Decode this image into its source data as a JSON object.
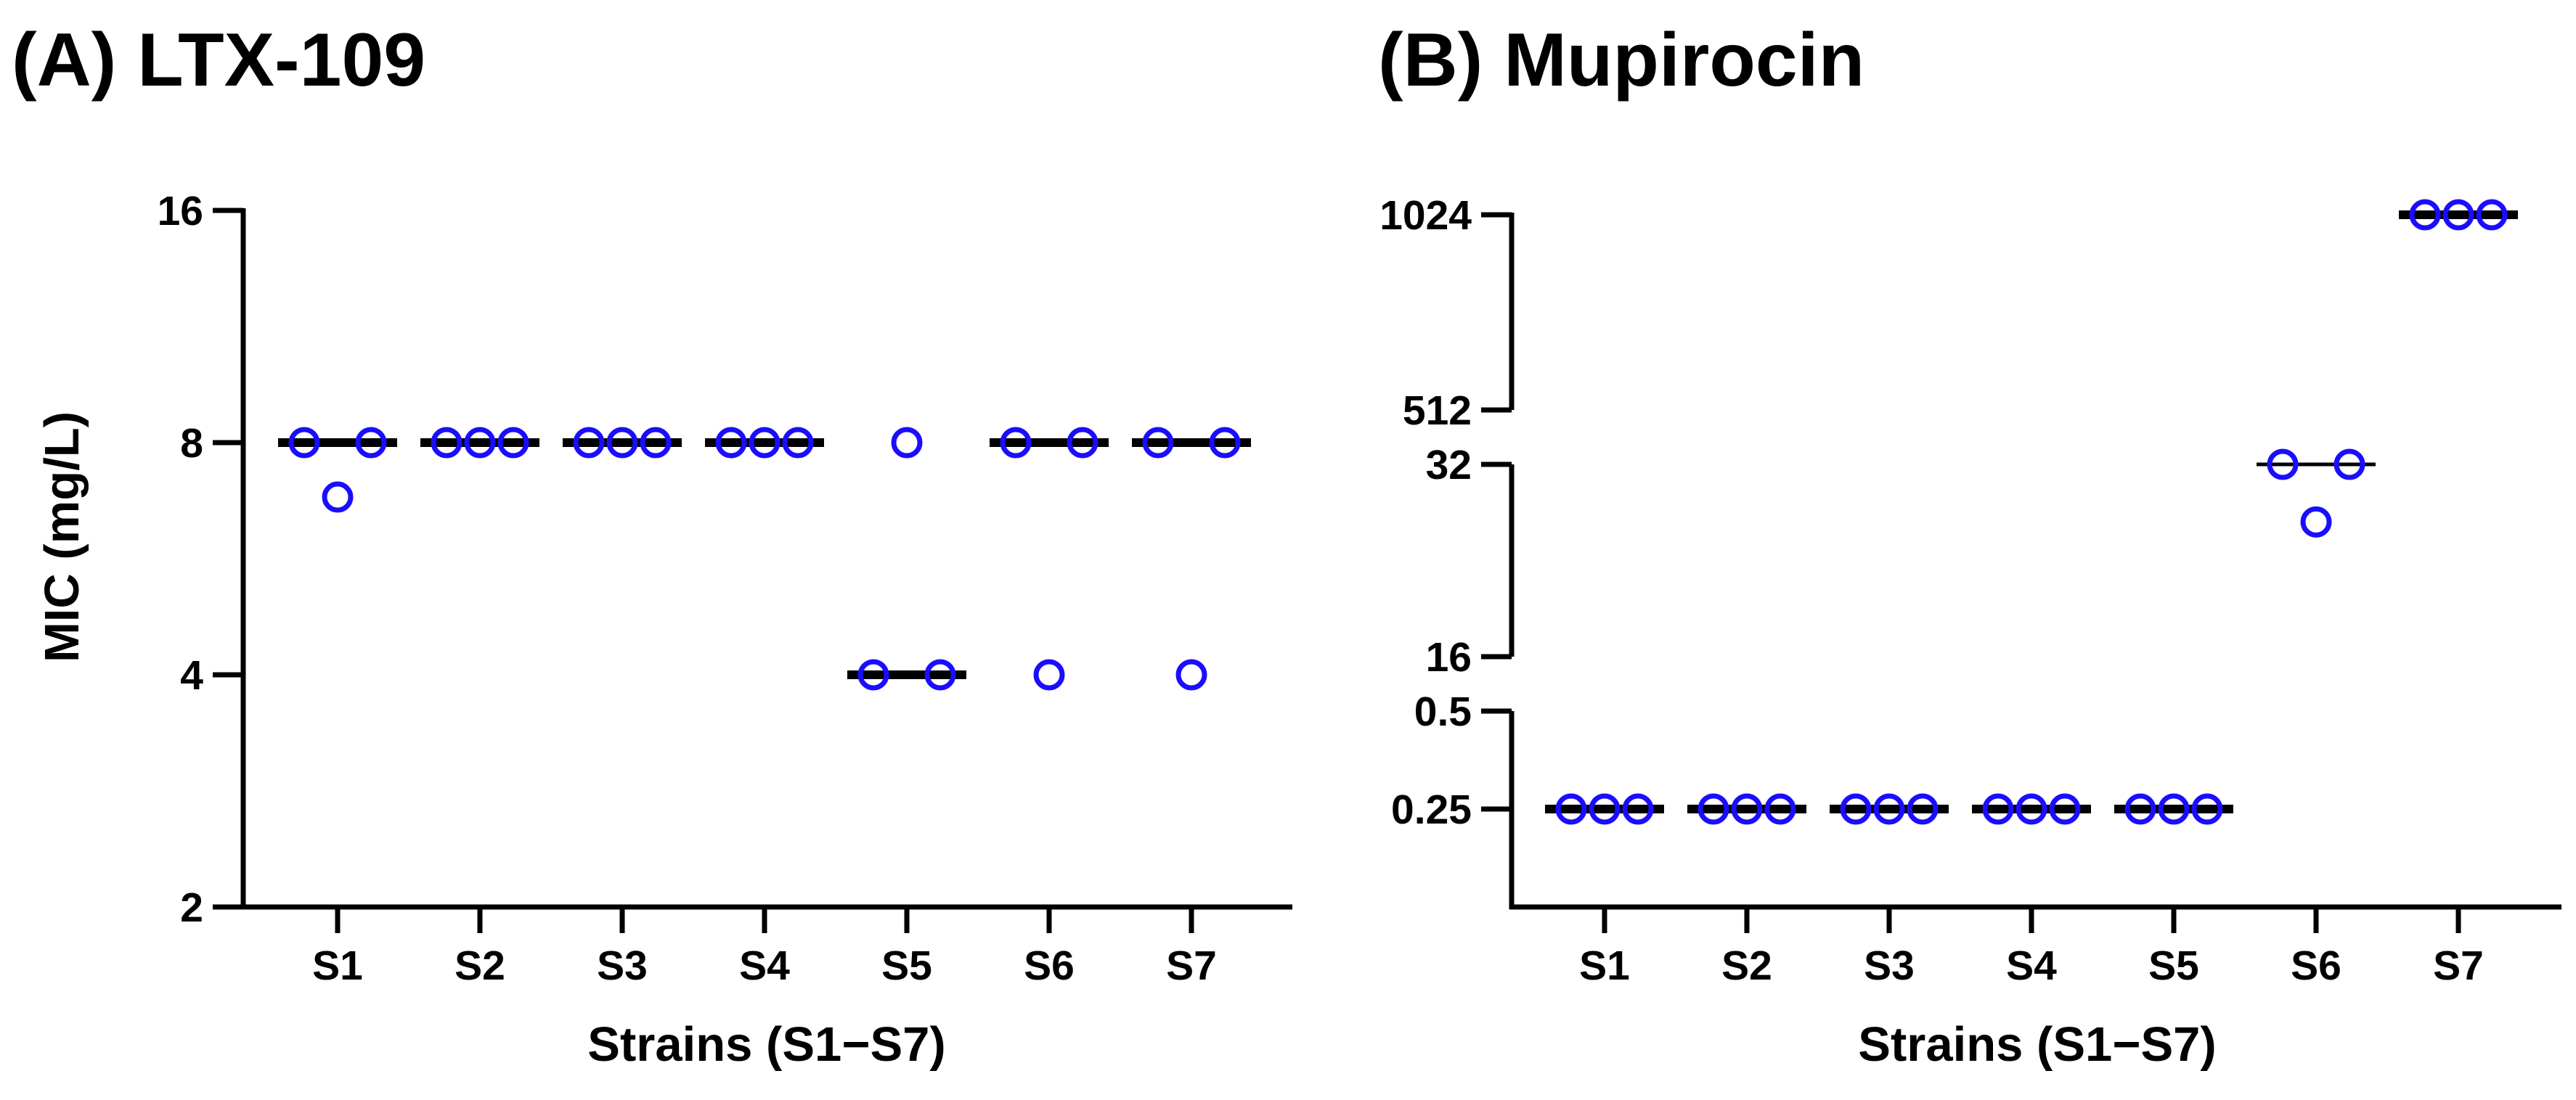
{
  "colors": {
    "points": "#1a0dff",
    "median": "#000000",
    "axes": "#000000"
  },
  "chart_data": [
    {
      "type": "scatter",
      "title": "(A) LTX-109",
      "xlabel": "Strains (S1−S7)",
      "ylabel": "MIC (mg/L)",
      "yscale": "log2",
      "ylim": [
        2,
        16
      ],
      "yticks": [
        "2",
        "4",
        "8",
        "16"
      ],
      "categories": [
        "S1",
        "S2",
        "S3",
        "S4",
        "S5",
        "S6",
        "S7"
      ],
      "replicates": [
        [
          8,
          8,
          6.8
        ],
        [
          8,
          8,
          8
        ],
        [
          8,
          8,
          8
        ],
        [
          8,
          8,
          8
        ],
        [
          8,
          4,
          4
        ],
        [
          8,
          8,
          4
        ],
        [
          8,
          8,
          4
        ]
      ],
      "medians": [
        8,
        8,
        8,
        8,
        4,
        8,
        8
      ],
      "median_line": "thick",
      "grid": false,
      "legend": "none"
    },
    {
      "type": "scatter",
      "title": "(B) Mupirocin",
      "xlabel": "Strains (S1−S7)",
      "ylabel": "",
      "yscale": "log2, broken axis",
      "ylim": [
        0.125,
        1024
      ],
      "yticks": [
        "0.25",
        "0.5",
        "16",
        "32",
        "512",
        "1024"
      ],
      "axis_breaks": [
        [
          0.5,
          16
        ],
        [
          32,
          512
        ]
      ],
      "categories": [
        "S1",
        "S2",
        "S3",
        "S4",
        "S5",
        "S6",
        "S7"
      ],
      "replicates": [
        [
          0.25,
          0.25,
          0.25
        ],
        [
          0.25,
          0.25,
          0.25
        ],
        [
          0.25,
          0.25,
          0.25
        ],
        [
          0.25,
          0.25,
          0.25
        ],
        [
          0.25,
          0.25,
          0.25
        ],
        [
          32,
          32,
          26
        ],
        [
          1024,
          1024,
          1024
        ]
      ],
      "medians": [
        0.25,
        0.25,
        0.25,
        0.25,
        0.25,
        32,
        1024
      ],
      "median_line_styles": [
        "thick",
        "thick",
        "thick",
        "thick",
        "thick",
        "thin",
        "thick"
      ],
      "grid": false,
      "legend": "none"
    }
  ]
}
